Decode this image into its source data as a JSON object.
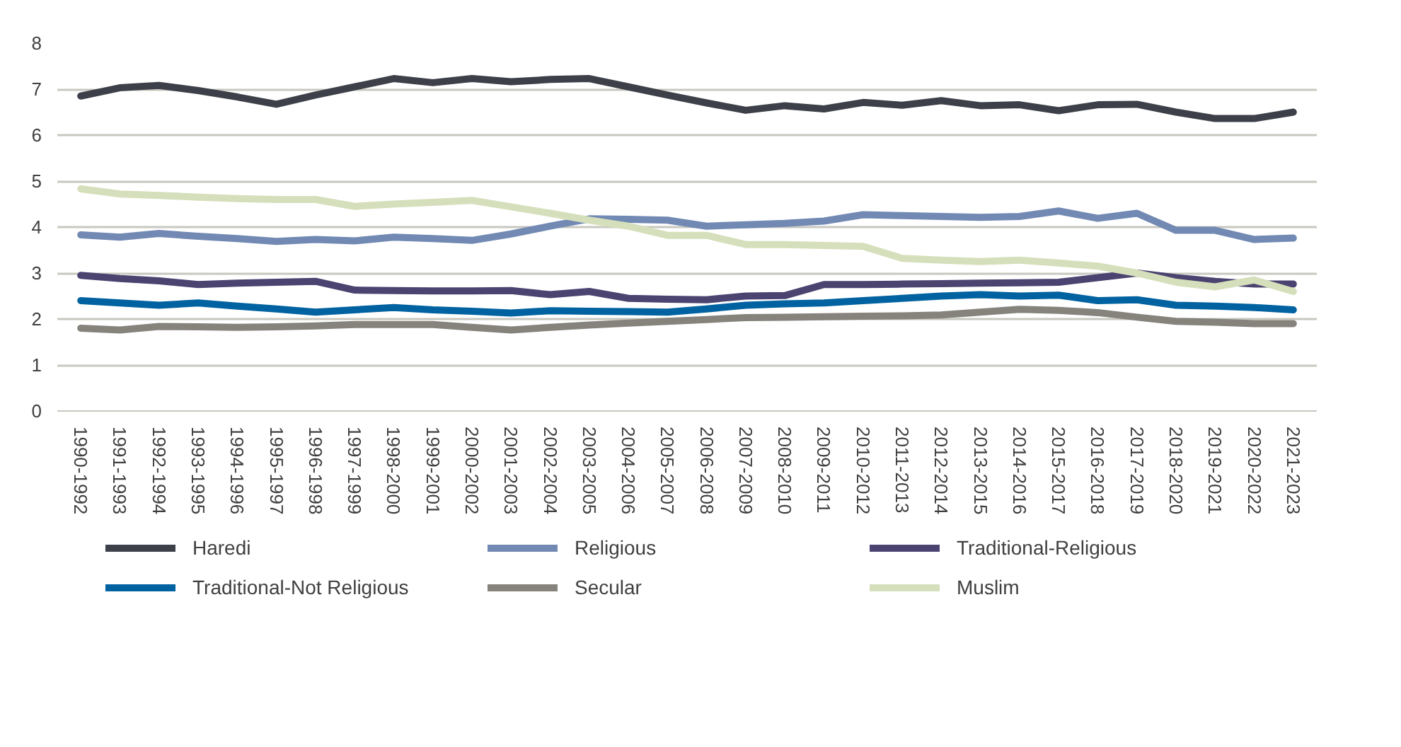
{
  "chart_data": {
    "type": "line",
    "categories": [
      "1990-1992",
      "1991-1993",
      "1992-1994",
      "1993-1995",
      "1994-1996",
      "1995-1997",
      "1996-1998",
      "1997-1999",
      "1998-2000",
      "1999-2001",
      "2000-2002",
      "2001-2003",
      "2002-2004",
      "2003-2005",
      "2004-2006",
      "2005-2007",
      "2006-2008",
      "2007-2009",
      "2008-2010",
      "2009-2011",
      "2010-2012",
      "2011-2013",
      "2012-2014",
      "2013-2015",
      "2014-2016",
      "2015-2017",
      "2016-2018",
      "2017-2019",
      "2018-2020",
      "2019-2021",
      "2020-2022",
      "2021-2023"
    ],
    "series": [
      {
        "name": "Haredi",
        "color": "#3d4049",
        "values": [
          6.85,
          7.03,
          7.08,
          6.97,
          6.83,
          6.67,
          6.87,
          7.05,
          7.23,
          7.14,
          7.23,
          7.16,
          7.21,
          7.23,
          7.05,
          6.87,
          6.7,
          6.54,
          6.64,
          6.57,
          6.71,
          6.65,
          6.75,
          6.64,
          6.66,
          6.53,
          6.66,
          6.67,
          6.5,
          6.36,
          6.36,
          6.5
        ]
      },
      {
        "name": "Religious",
        "color": "#7189b3",
        "values": [
          3.83,
          3.78,
          3.86,
          3.8,
          3.75,
          3.69,
          3.73,
          3.7,
          3.78,
          3.75,
          3.71,
          3.85,
          4.02,
          4.18,
          4.17,
          4.15,
          4.02,
          4.05,
          4.08,
          4.13,
          4.27,
          4.25,
          4.23,
          4.21,
          4.23,
          4.35,
          4.19,
          4.3,
          3.93,
          3.93,
          3.73,
          3.76
        ]
      },
      {
        "name": "Traditional-Religious",
        "color": "#4b4370",
        "values": [
          2.95,
          2.88,
          2.83,
          2.75,
          2.78,
          2.8,
          2.82,
          2.63,
          2.62,
          2.61,
          2.61,
          2.62,
          2.53,
          2.6,
          2.45,
          2.43,
          2.42,
          2.5,
          2.51,
          2.75,
          2.75,
          2.76,
          2.77,
          2.78,
          2.79,
          2.8,
          2.9,
          3.0,
          2.9,
          2.82,
          2.76,
          2.76
        ]
      },
      {
        "name": "Traditional-Not Religious",
        "color": "#0062a0",
        "values": [
          2.4,
          2.35,
          2.3,
          2.35,
          2.28,
          2.22,
          2.15,
          2.2,
          2.25,
          2.2,
          2.17,
          2.13,
          2.18,
          2.17,
          2.16,
          2.15,
          2.22,
          2.3,
          2.33,
          2.35,
          2.4,
          2.45,
          2.5,
          2.53,
          2.5,
          2.52,
          2.4,
          2.42,
          2.3,
          2.28,
          2.25,
          2.2
        ]
      },
      {
        "name": "Secular",
        "color": "#85837c",
        "values": [
          1.8,
          1.76,
          1.84,
          1.83,
          1.82,
          1.83,
          1.85,
          1.88,
          1.88,
          1.88,
          1.82,
          1.76,
          1.82,
          1.87,
          1.91,
          1.95,
          1.99,
          2.03,
          2.04,
          2.05,
          2.06,
          2.07,
          2.09,
          2.15,
          2.21,
          2.19,
          2.14,
          2.04,
          1.95,
          1.93,
          1.9,
          1.9
        ]
      },
      {
        "name": "Muslim",
        "color": "#d6dfbb",
        "values": [
          4.83,
          4.72,
          4.69,
          4.65,
          4.62,
          4.6,
          4.6,
          4.45,
          4.5,
          4.54,
          4.58,
          4.44,
          4.3,
          4.15,
          4.02,
          3.82,
          3.82,
          3.62,
          3.62,
          3.6,
          3.58,
          3.32,
          3.28,
          3.25,
          3.28,
          3.22,
          3.15,
          3.0,
          2.8,
          2.7,
          2.85,
          2.6
        ]
      }
    ],
    "ylim": [
      0,
      8
    ],
    "yticks": [
      0,
      1,
      2,
      3,
      4,
      5,
      6,
      7,
      8
    ],
    "grid": "y",
    "legend": "bottom",
    "marker": "none",
    "line_style": "solid"
  }
}
